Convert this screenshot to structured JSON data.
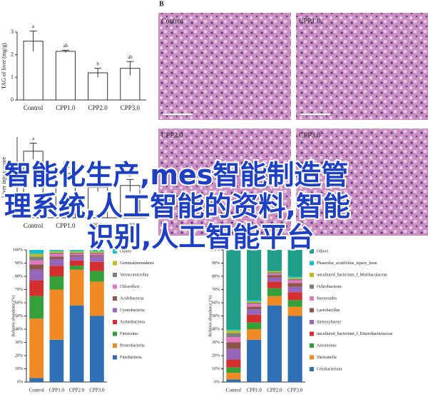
{
  "images": {
    "label": "B",
    "panels": [
      "Control",
      "CPP1.0",
      "CPP2.0",
      "CPP3.0"
    ]
  },
  "overlay": {
    "lines": [
      "智能化生产,mes智能制造管",
      "理系统,人工智能的资料,智能",
      "识别,人工智能平台"
    ]
  },
  "chart_data": [
    {
      "type": "bar",
      "y_label": "TAG of liver (mg/g)",
      "color": "#ffffff",
      "categories": [
        "Control",
        "CPP1.0",
        "CPP2.0",
        "CPP3.0"
      ],
      "values": [
        2.6,
        2.15,
        1.2,
        1.4
      ],
      "errors": [
        0.45,
        0.05,
        0.2,
        0.3
      ],
      "letters": [
        "a",
        "ab",
        "b",
        "ab"
      ],
      "ylim": [
        0,
        3
      ],
      "yticks": [
        0,
        1,
        2,
        3
      ]
    },
    {
      "type": "bar",
      "y_label": "Liver injury score",
      "color": "#ffffff",
      "categories": [
        "Control",
        "CPP1.0",
        "CPP2.0",
        "CPP3.0"
      ],
      "values": [
        3.3,
        2.2,
        1.5,
        1.6
      ],
      "errors": [
        0.4,
        0.3,
        0.2,
        0.3
      ],
      "letters": [
        "a",
        "ab",
        "b",
        "b"
      ],
      "ylim": [
        0,
        4
      ]
    },
    {
      "type": "stacked_bar",
      "y_label": "Relative abundance (%)",
      "categories": [
        "Control",
        "CPP1.0",
        "CPP2.0",
        "CPP3.0"
      ],
      "ylim": [
        0,
        100
      ],
      "yticks": [
        {
          "value": 0,
          "label": "0%"
        },
        {
          "value": 10,
          "label": "10%"
        },
        {
          "value": 20,
          "label": "20%"
        },
        {
          "value": 30,
          "label": "30%"
        },
        {
          "value": 40,
          "label": "40%"
        },
        {
          "value": 50,
          "label": "50%"
        },
        {
          "value": 60,
          "label": "60%"
        },
        {
          "value": 70,
          "label": "70%"
        },
        {
          "value": 80,
          "label": "80%"
        },
        {
          "value": 90,
          "label": "90%"
        },
        {
          "value": 100,
          "label": "100%"
        }
      ],
      "series": [
        {
          "name": "Fusobacteria",
          "color": "#2f6fb3",
          "values": [
            3,
            32,
            58,
            50
          ]
        },
        {
          "name": "Proteobacteria",
          "color": "#f08a24",
          "values": [
            45,
            38,
            27,
            26
          ]
        },
        {
          "name": "Firmicutes",
          "color": "#34a03a",
          "values": [
            17,
            10,
            3,
            8
          ]
        },
        {
          "name": "Actinobacteria",
          "color": "#d42f2f",
          "values": [
            12,
            8,
            4,
            7
          ]
        },
        {
          "name": "Cyanobacteria",
          "color": "#9467bd",
          "values": [
            8,
            5,
            3,
            4
          ]
        },
        {
          "name": "Acidobacteria",
          "color": "#8c564b",
          "values": [
            4,
            2,
            1,
            1
          ]
        },
        {
          "name": "Chloroflexi",
          "color": "#e377c2",
          "values": [
            3,
            2,
            1,
            1
          ]
        },
        {
          "name": "Verrucomicrobia",
          "color": "#7f7f7f",
          "values": [
            3,
            1,
            1,
            1
          ]
        },
        {
          "name": "Gemmatimonadetes",
          "color": "#bcbd22",
          "values": [
            2,
            1,
            1,
            1
          ]
        },
        {
          "name": "Others",
          "color": "#17becf",
          "values": [
            3,
            1,
            1,
            1
          ]
        }
      ]
    },
    {
      "type": "stacked_bar",
      "y_label": "Relative abundance (%)",
      "categories": [
        "Control",
        "CPP1.0",
        "CPP2.0",
        "CPP3.0"
      ],
      "ylim": [
        0,
        100
      ],
      "yticks": [
        {
          "value": 0,
          "label": "0%"
        },
        {
          "value": 10,
          "label": "10%"
        },
        {
          "value": 20,
          "label": "20%"
        },
        {
          "value": 30,
          "label": "30%"
        },
        {
          "value": 40,
          "label": "40%"
        },
        {
          "value": 50,
          "label": "50%"
        },
        {
          "value": 60,
          "label": "60%"
        },
        {
          "value": 70,
          "label": "70%"
        },
        {
          "value": 80,
          "label": "80%"
        },
        {
          "value": 90,
          "label": "90%"
        },
        {
          "value": 100,
          "label": "100%"
        }
      ],
      "series": [
        {
          "name": "Cetobacterium",
          "color": "#2f6fb3",
          "values": [
            2,
            32,
            58,
            50
          ]
        },
        {
          "name": "Shewanella",
          "color": "#f08a24",
          "values": [
            5,
            8,
            7,
            7
          ]
        },
        {
          "name": "Aeromonas",
          "color": "#34a03a",
          "values": [
            4,
            5,
            6,
            5
          ]
        },
        {
          "name": "uncultured_bacterium_f_Enterobacteriaceae",
          "color": "#d42f2f",
          "values": [
            6,
            6,
            5,
            6
          ]
        },
        {
          "name": "Stenoxybacter",
          "color": "#9467bd",
          "values": [
            8,
            4,
            3,
            4
          ]
        },
        {
          "name": "Lactobacillus",
          "color": "#8c564b",
          "values": [
            5,
            2,
            2,
            3
          ]
        },
        {
          "name": "Bacteroides",
          "color": "#e377c2",
          "values": [
            4,
            2,
            1,
            2
          ]
        },
        {
          "name": "Ochrobactrum",
          "color": "#7f7f7f",
          "values": [
            3,
            1,
            1,
            1
          ]
        },
        {
          "name": "uncultured_bacterium_f_Muribaculaceae",
          "color": "#bcbd22",
          "values": [
            2,
            1,
            1,
            1
          ]
        },
        {
          "name": "Phaseolus_acutifolius_tepary_bean",
          "color": "#17becf",
          "values": [
            1,
            1,
            0,
            1
          ]
        },
        {
          "name": "Others",
          "color": "#1f9e89",
          "values": [
            60,
            38,
            16,
            20
          ]
        }
      ]
    }
  ]
}
